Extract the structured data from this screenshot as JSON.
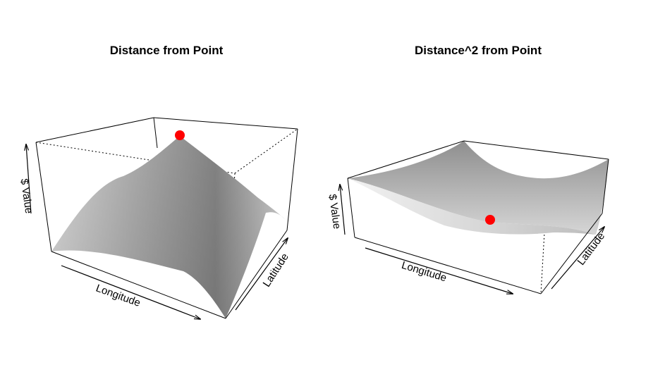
{
  "chart_data": [
    {
      "type": "surface",
      "title": "Distance from Point",
      "xlabel": "Longitude",
      "ylabel": "Latitude",
      "zlabel": "$ Value",
      "shape": "peak",
      "highlight_point": {
        "color": "#ff0000"
      },
      "surface_color": "#a0a0a0"
    },
    {
      "type": "surface",
      "title": "Distance^2 from Point",
      "xlabel": "Longitude",
      "ylabel": "Latitude",
      "zlabel": "$ Value",
      "shape": "bowl",
      "highlight_point": {
        "color": "#ff0000"
      },
      "surface_color": "#a0a0a0"
    }
  ]
}
